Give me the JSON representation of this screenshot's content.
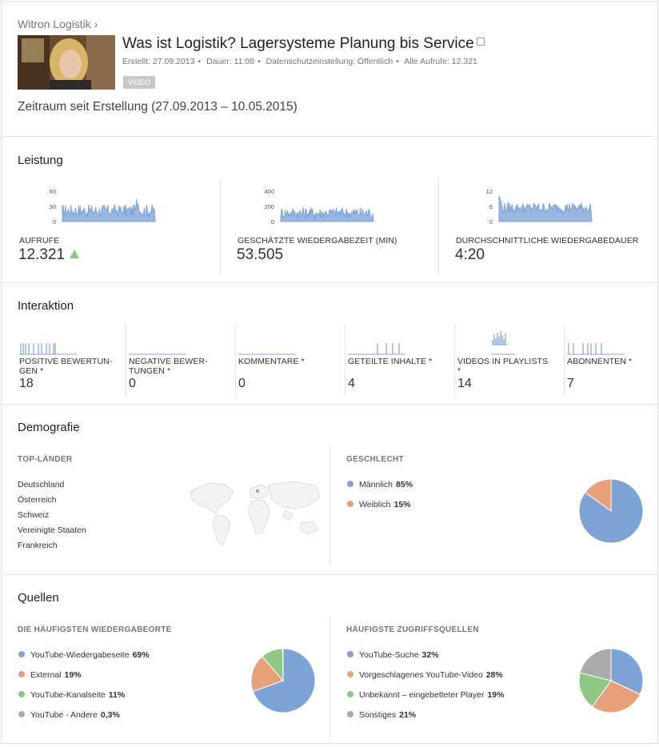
{
  "header": {
    "channel": "Witron Logistik ›",
    "title": "Was ist Logistik? Lagersysteme Planung bis Service",
    "meta": {
      "created": "Erstellt: 27.09.2013",
      "duration": "Dauer: 11:08",
      "privacy": "Datenschutzeinstellung: Öffentlich",
      "views": "Alle Aufrufe: 12.321"
    },
    "badge": "VIDEO",
    "range": "Zeitraum seit Erstellung (27.09.2013 – 10.05.2015)"
  },
  "leistung": {
    "title": "Leistung",
    "metrics": [
      {
        "label": "AUFRUFE",
        "value": "12.321",
        "ticks": [
          "60",
          "30",
          "0"
        ]
      },
      {
        "label": "GESCHÄTZTE WIEDERGABEZEIT (MIN)",
        "value": "53.505",
        "ticks": [
          "400",
          "200",
          "0"
        ]
      },
      {
        "label": "DURCHSCHNITTLICHE WIEDERGABEDAUER",
        "value": "4:20",
        "ticks": [
          "12",
          "6",
          "0"
        ]
      }
    ]
  },
  "interaktion": {
    "title": "Interaktion",
    "metrics": [
      {
        "label": "POSITIVE BEWERTUN-\nGEN *",
        "value": "18"
      },
      {
        "label": "NEGATIVE BEWER-\nTUNGEN *",
        "value": "0"
      },
      {
        "label": "KOMMENTARE *",
        "value": "0"
      },
      {
        "label": "GETEILTE INHALTE *",
        "value": "4"
      },
      {
        "label": "VIDEOS IN PLAYLISTS\n*",
        "value": "14"
      },
      {
        "label": "ABONNENTEN *",
        "value": "7"
      }
    ]
  },
  "demografie": {
    "title": "Demografie",
    "countries_head": "TOP-LÄNDER",
    "countries": [
      "Deutschland",
      "Österreich",
      "Schweiz",
      "Vereinigte Staaten",
      "Frankreich"
    ],
    "gender_head": "GESCHLECHT",
    "gender": [
      {
        "name": "Männlich",
        "pct": "85%",
        "value": 85,
        "color": "#7ea4d6"
      },
      {
        "name": "Weiblich",
        "pct": "15%",
        "value": 15,
        "color": "#e8a07a"
      }
    ]
  },
  "quellen": {
    "title": "Quellen",
    "places_head": "DIE HÄUFIGSTEN WIEDERGABEORTE",
    "places": [
      {
        "name": "YouTube-Wiedergabeseite",
        "pct": "69%",
        "value": 69,
        "color": "#7ea4d6"
      },
      {
        "name": "External",
        "pct": "19%",
        "value": 19,
        "color": "#e8a07a"
      },
      {
        "name": "YouTube-Kanalseite",
        "pct": "11%",
        "value": 11,
        "color": "#8fc785"
      },
      {
        "name": "YouTube - Andere",
        "pct": "0,3%",
        "value": 0.3,
        "color": "#aaaaaa"
      }
    ],
    "sources_head": "HÄUFIGSTE ZUGRIFFSQUELLEN",
    "sources": [
      {
        "name": "YouTube-Suche",
        "pct": "32%",
        "value": 32,
        "color": "#7ea4d6"
      },
      {
        "name": "Vorgeschlagenes YouTube-Video",
        "pct": "28%",
        "value": 28,
        "color": "#e8a07a"
      },
      {
        "name": "Unbekannt – eingebetteter Player",
        "pct": "19%",
        "value": 19,
        "color": "#8fc785"
      },
      {
        "name": "Sonstiges",
        "pct": "21%",
        "value": 21,
        "color": "#aaaaaa"
      }
    ]
  }
}
